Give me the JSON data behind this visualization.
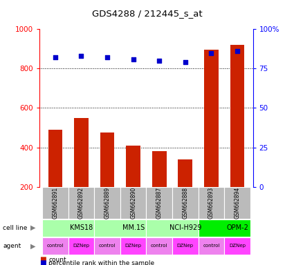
{
  "title": "GDS4288 / 212445_s_at",
  "samples": [
    "GSM662891",
    "GSM662892",
    "GSM662889",
    "GSM662890",
    "GSM662887",
    "GSM662888",
    "GSM662893",
    "GSM662894"
  ],
  "counts": [
    490,
    550,
    475,
    410,
    380,
    340,
    895,
    920
  ],
  "percentiles": [
    82,
    83,
    82,
    81,
    80,
    79,
    85,
    86
  ],
  "cell_lines": [
    {
      "label": "KMS18",
      "span": [
        0,
        2
      ],
      "color": "#aaffaa"
    },
    {
      "label": "MM.1S",
      "span": [
        2,
        4
      ],
      "color": "#aaffaa"
    },
    {
      "label": "NCI-H929",
      "span": [
        4,
        6
      ],
      "color": "#aaffaa"
    },
    {
      "label": "OPM-2",
      "span": [
        6,
        8
      ],
      "color": "#00ee00"
    }
  ],
  "agents": [
    "control",
    "DZNep",
    "control",
    "DZNep",
    "control",
    "DZNep",
    "control",
    "DZNep"
  ],
  "agent_colors": [
    "#ee82ee",
    "#ff44ff",
    "#ee82ee",
    "#ff44ff",
    "#ee82ee",
    "#ff44ff",
    "#ee82ee",
    "#ff44ff"
  ],
  "bar_color": "#cc2200",
  "dot_color": "#0000cc",
  "ylim_left": [
    200,
    1000
  ],
  "ylim_right": [
    0,
    100
  ],
  "yticks_left": [
    200,
    400,
    600,
    800,
    1000
  ],
  "yticks_right": [
    0,
    25,
    50,
    75,
    100
  ],
  "bg_color": "#bbbbbb"
}
